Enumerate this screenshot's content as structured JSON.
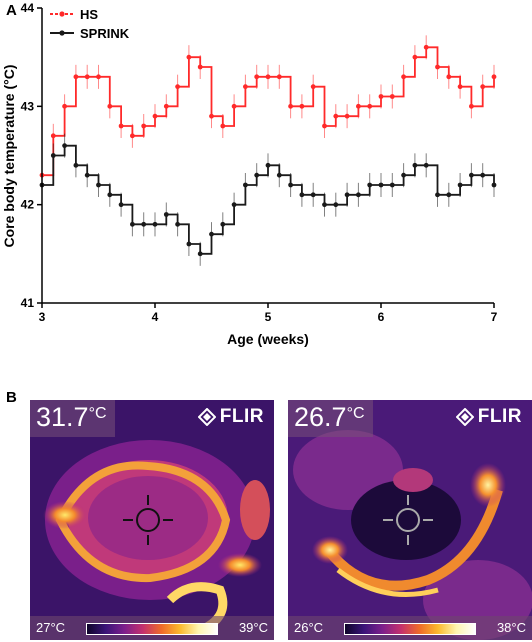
{
  "panels": {
    "a_label": "A",
    "b_label": "B"
  },
  "chart_data": {
    "type": "line",
    "xlabel": "Age (weeks)",
    "ylabel": "Core body temperature (°C)",
    "xlim": [
      3,
      7
    ],
    "ylim": [
      41,
      44
    ],
    "xticks": [
      "3",
      "4",
      "5",
      "6",
      "7"
    ],
    "yticks": [
      "41",
      "42",
      "43",
      "44"
    ],
    "legend": "top-left",
    "series": [
      {
        "name": "HS",
        "color": "#ff2a2a",
        "x": [
          3.0,
          3.1,
          3.2,
          3.3,
          3.4,
          3.5,
          3.6,
          3.7,
          3.8,
          3.9,
          4.0,
          4.1,
          4.2,
          4.3,
          4.4,
          4.5,
          4.6,
          4.7,
          4.8,
          4.9,
          5.0,
          5.1,
          5.2,
          5.3,
          5.4,
          5.5,
          5.6,
          5.7,
          5.8,
          5.9,
          6.0,
          6.1,
          6.2,
          6.3,
          6.4,
          6.5,
          6.6,
          6.7,
          6.8,
          6.9,
          7.0
        ],
        "y": [
          42.3,
          42.7,
          43.0,
          43.3,
          43.3,
          43.3,
          43.0,
          42.8,
          42.7,
          42.8,
          42.9,
          43.0,
          43.2,
          43.5,
          43.4,
          42.9,
          42.8,
          43.0,
          43.2,
          43.3,
          43.3,
          43.3,
          43.0,
          43.0,
          43.2,
          42.8,
          42.9,
          42.9,
          43.0,
          43.0,
          43.1,
          43.1,
          43.3,
          43.5,
          43.6,
          43.4,
          43.3,
          43.2,
          43.0,
          43.2,
          43.3
        ]
      },
      {
        "name": "SPRINK",
        "color": "#1a1a1a",
        "x": [
          3.0,
          3.1,
          3.2,
          3.3,
          3.4,
          3.5,
          3.6,
          3.7,
          3.8,
          3.9,
          4.0,
          4.1,
          4.2,
          4.3,
          4.4,
          4.5,
          4.6,
          4.7,
          4.8,
          4.9,
          5.0,
          5.1,
          5.2,
          5.3,
          5.4,
          5.5,
          5.6,
          5.7,
          5.8,
          5.9,
          6.0,
          6.1,
          6.2,
          6.3,
          6.4,
          6.5,
          6.6,
          6.7,
          6.8,
          6.9,
          7.0
        ],
        "y": [
          42.2,
          42.5,
          42.6,
          42.4,
          42.3,
          42.2,
          42.1,
          42.0,
          41.8,
          41.8,
          41.8,
          41.9,
          41.8,
          41.6,
          41.5,
          41.7,
          41.8,
          42.0,
          42.2,
          42.3,
          42.4,
          42.3,
          42.2,
          42.1,
          42.1,
          42.0,
          42.0,
          42.1,
          42.1,
          42.2,
          42.2,
          42.2,
          42.3,
          42.4,
          42.4,
          42.1,
          42.1,
          42.2,
          42.3,
          42.3,
          42.2
        ]
      }
    ]
  },
  "thermal_images": [
    {
      "temperature": "31.7",
      "unit": "°C",
      "brand": "FLIR",
      "scale_min": "27°C",
      "scale_max": "39°C"
    },
    {
      "temperature": "26.7",
      "unit": "°C",
      "brand": "FLIR",
      "scale_min": "26°C",
      "scale_max": "38°C"
    }
  ]
}
